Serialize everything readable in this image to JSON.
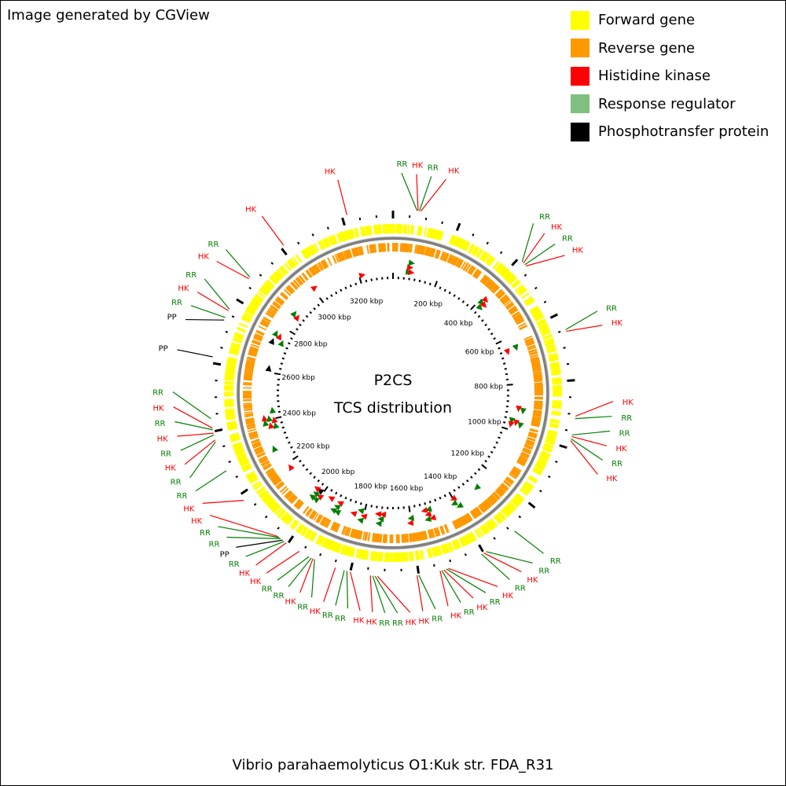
{
  "credit": "Image generated by CGView",
  "footer_title": "Vibrio parahaemolyticus O1:Kuk str. FDA_R31",
  "center": {
    "line1": "P2CS",
    "line2": "TCS distribution"
  },
  "colors": {
    "forward": "#ffff00",
    "reverse": "#ff9900",
    "hk": "#ff0000",
    "rr": "#7fbf7f",
    "rr_marker": "#007f00",
    "pp": "#000000",
    "backbone": "#808080"
  },
  "legend": [
    {
      "label": "Forward gene",
      "color": "#ffff00"
    },
    {
      "label": "Reverse gene",
      "color": "#ff9900"
    },
    {
      "label": "Histidine kinase",
      "color": "#ff0000"
    },
    {
      "label": "Response regulator",
      "color": "#7fbf7f"
    },
    {
      "label": "Phosphotransfer protein",
      "color": "#000000"
    }
  ],
  "genome_kbp": 3350,
  "kbp_labels": [
    {
      "text": "200 kbp",
      "kbp": 200
    },
    {
      "text": "400 kbp",
      "kbp": 400
    },
    {
      "text": "600 kbp",
      "kbp": 600
    },
    {
      "text": "800 kbp",
      "kbp": 800
    },
    {
      "text": "1000 kbp",
      "kbp": 1000
    },
    {
      "text": "1200 kbp",
      "kbp": 1200
    },
    {
      "text": "1400 kbp",
      "kbp": 1400
    },
    {
      "text": "1600 kbp",
      "kbp": 1600
    },
    {
      "text": "1800 kbp",
      "kbp": 1800
    },
    {
      "text": "2000 kbp",
      "kbp": 2000
    },
    {
      "text": "2200 kbp",
      "kbp": 2200
    },
    {
      "text": "2400 kbp",
      "kbp": 2400
    },
    {
      "text": "2600 kbp",
      "kbp": 2600
    },
    {
      "text": "2800 kbp",
      "kbp": 2800
    },
    {
      "text": "3000 kbp",
      "kbp": 3000
    },
    {
      "text": "3200 kbp",
      "kbp": 3200
    }
  ],
  "features": [
    {
      "type": "RR",
      "kbp": 70
    },
    {
      "type": "HK",
      "kbp": 73
    },
    {
      "type": "RR",
      "kbp": 77
    },
    {
      "type": "HK",
      "kbp": 81
    },
    {
      "type": "RR",
      "kbp": 415
    },
    {
      "type": "HK",
      "kbp": 420
    },
    {
      "type": "RR",
      "kbp": 426
    },
    {
      "type": "HK",
      "kbp": 431
    },
    {
      "type": "RR",
      "kbp": 650
    },
    {
      "type": "HK",
      "kbp": 655
    },
    {
      "type": "HK",
      "kbp": 905
    },
    {
      "type": "RR",
      "kbp": 912
    },
    {
      "type": "RR",
      "kbp": 960
    },
    {
      "type": "HK",
      "kbp": 965
    },
    {
      "type": "RR",
      "kbp": 972
    },
    {
      "type": "HK",
      "kbp": 977
    },
    {
      "type": "RR",
      "kbp": 1290
    },
    {
      "type": "RR",
      "kbp": 1392
    },
    {
      "type": "HK",
      "kbp": 1400
    },
    {
      "type": "RR",
      "kbp": 1407
    },
    {
      "type": "HK",
      "kbp": 1512
    },
    {
      "type": "RR",
      "kbp": 1518
    },
    {
      "type": "HK",
      "kbp": 1526
    },
    {
      "type": "RR",
      "kbp": 1532
    },
    {
      "type": "HK",
      "kbp": 1537
    },
    {
      "type": "RR",
      "kbp": 1600
    },
    {
      "type": "HK",
      "kbp": 1605
    },
    {
      "type": "HK",
      "kbp": 1720
    },
    {
      "type": "RR",
      "kbp": 1727
    },
    {
      "type": "RR",
      "kbp": 1734
    },
    {
      "type": "HK",
      "kbp": 1741
    },
    {
      "type": "HK",
      "kbp": 1800
    },
    {
      "type": "RR",
      "kbp": 1810
    },
    {
      "type": "RR",
      "kbp": 1818
    },
    {
      "type": "HK",
      "kbp": 1845
    },
    {
      "type": "RR",
      "kbp": 1910
    },
    {
      "type": "HK",
      "kbp": 1915
    },
    {
      "type": "RR",
      "kbp": 1920
    },
    {
      "type": "RR",
      "kbp": 1928
    },
    {
      "type": "HK",
      "kbp": 1960
    },
    {
      "type": "HK",
      "kbp": 2005
    },
    {
      "type": "RR",
      "kbp": 2012
    },
    {
      "type": "PP",
      "kbp": 2018
    },
    {
      "type": "RR",
      "kbp": 2025
    },
    {
      "type": "RR",
      "kbp": 2030
    },
    {
      "type": "HK",
      "kbp": 2035
    },
    {
      "type": "HK",
      "kbp": 2180
    },
    {
      "type": "RR",
      "kbp": 2280
    },
    {
      "type": "RR",
      "kbp": 2370
    },
    {
      "type": "HK",
      "kbp": 2375
    },
    {
      "type": "RR",
      "kbp": 2390
    },
    {
      "type": "HK",
      "kbp": 2395
    },
    {
      "type": "RR",
      "kbp": 2405
    },
    {
      "type": "HK",
      "kbp": 2410
    },
    {
      "type": "RR",
      "kbp": 2438
    },
    {
      "type": "PP",
      "kbp": 2618
    },
    {
      "type": "PP",
      "kbp": 2730
    },
    {
      "type": "RR",
      "kbp": 2738
    },
    {
      "type": "HK",
      "kbp": 2760
    },
    {
      "type": "RR",
      "kbp": 2765
    },
    {
      "type": "HK",
      "kbp": 2870
    },
    {
      "type": "RR",
      "kbp": 2875
    },
    {
      "type": "HK",
      "kbp": 3010
    },
    {
      "type": "HK",
      "kbp": 3215
    }
  ]
}
